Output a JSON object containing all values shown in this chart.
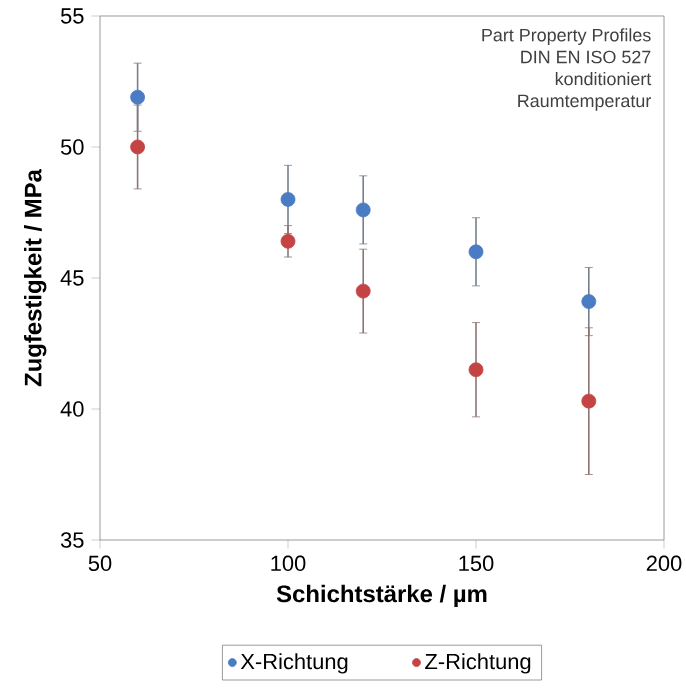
{
  "chart_data": {
    "type": "scatter",
    "xlabel": "Schichtstärke / µm",
    "ylabel": "Zugfestigkeit / MPa",
    "annotations": [
      "Part Property Profiles",
      "DIN EN ISO 527",
      "konditioniert",
      "Raumtemperatur"
    ],
    "x": [
      60,
      100,
      120,
      150,
      180
    ],
    "series": [
      {
        "name": "X-Richtung",
        "color": "#4a7cc4",
        "values": [
          51.9,
          48.0,
          47.6,
          46.0,
          44.1
        ],
        "errors": [
          1.3,
          1.3,
          1.3,
          1.3,
          1.3
        ]
      },
      {
        "name": "Z-Richtung",
        "color": "#c44444",
        "values": [
          50.0,
          46.4,
          44.5,
          41.5,
          40.3
        ],
        "errors": [
          1.6,
          0.6,
          1.6,
          1.8,
          2.8
        ]
      }
    ],
    "xlim": [
      50,
      200
    ],
    "ylim": [
      35,
      55
    ],
    "xticks": [
      50,
      100,
      150,
      200
    ],
    "yticks": [
      35,
      40,
      45,
      50,
      55
    ],
    "grid": false,
    "legend": "bottom",
    "marker": "circle"
  }
}
